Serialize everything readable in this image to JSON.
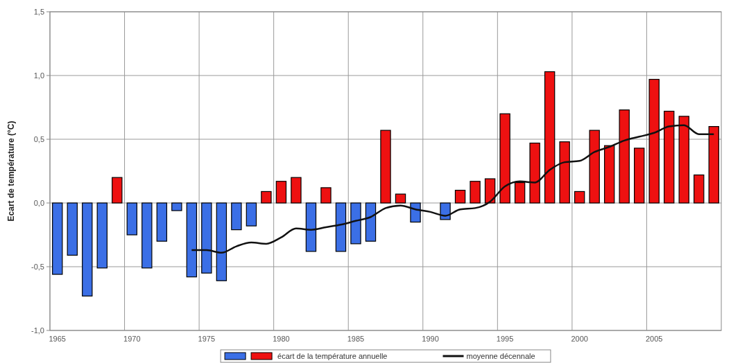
{
  "chart_data": {
    "type": "bar",
    "ylabel": "Ecart de température (°C)",
    "categories": [
      "1965",
      null,
      null,
      null,
      null,
      "1970",
      null,
      null,
      null,
      null,
      "1975",
      null,
      null,
      null,
      null,
      "1980",
      null,
      null,
      null,
      null,
      "1985",
      null,
      null,
      null,
      null,
      "1990",
      null,
      null,
      null,
      null,
      "1995",
      null,
      null,
      null,
      null,
      "2000",
      null,
      null,
      null,
      null,
      "2005",
      null,
      null,
      null,
      null
    ],
    "series": [
      {
        "name": "écart de la température annuelle",
        "values": [
          -0.56,
          -0.41,
          -0.73,
          -0.51,
          0.2,
          -0.25,
          -0.51,
          -0.3,
          -0.06,
          -0.58,
          -0.55,
          -0.61,
          -0.21,
          -0.18,
          0.09,
          0.17,
          0.2,
          -0.38,
          0.12,
          -0.38,
          -0.32,
          -0.3,
          0.57,
          0.07,
          -0.15,
          0,
          -0.13,
          0.1,
          0.17,
          0.19,
          0.7,
          0.16,
          0.47,
          1.03,
          0.48,
          0.09,
          0.57,
          0.45,
          0.73,
          0.43,
          0.97,
          0.72,
          0.68,
          0.22,
          0.6
        ],
        "colors": [
          "#3b6fe6",
          "#3b6fe6",
          "#3b6fe6",
          "#3b6fe6",
          "#ee1111",
          "#3b6fe6",
          "#3b6fe6",
          "#3b6fe6",
          "#3b6fe6",
          "#3b6fe6",
          "#3b6fe6",
          "#3b6fe6",
          "#3b6fe6",
          "#3b6fe6",
          "#ee1111",
          "#ee1111",
          "#ee1111",
          "#3b6fe6",
          "#ee1111",
          "#3b6fe6",
          "#3b6fe6",
          "#3b6fe6",
          "#ee1111",
          "#ee1111",
          "#3b6fe6",
          "#ee1111",
          "#3b6fe6",
          "#ee1111",
          "#ee1111",
          "#ee1111",
          "#ee1111",
          "#ee1111",
          "#ee1111",
          "#ee1111",
          "#ee1111",
          "#ee1111",
          "#ee1111",
          "#ee1111",
          "#ee1111",
          "#ee1111",
          "#ee1111",
          "#ee1111",
          "#ee1111",
          "#ee1111",
          "#ee1111"
        ]
      },
      {
        "name": "moyenne décennale",
        "type": "line",
        "color": "#111111",
        "values": [
          null,
          null,
          null,
          null,
          null,
          null,
          null,
          null,
          null,
          -0.37,
          -0.37,
          -0.39,
          -0.34,
          -0.31,
          -0.32,
          -0.27,
          -0.2,
          -0.21,
          -0.19,
          -0.17,
          -0.14,
          -0.11,
          -0.04,
          -0.02,
          -0.05,
          -0.07,
          -0.1,
          -0.05,
          -0.04,
          0.01,
          0.13,
          0.17,
          0.16,
          0.26,
          0.32,
          0.33,
          0.4,
          0.44,
          0.49,
          0.52,
          0.55,
          0.6,
          0.61,
          0.54,
          0.54
        ]
      }
    ],
    "ylim": [
      -1,
      1.5
    ],
    "yticks": [
      {
        "value": -1,
        "label": "-1,0"
      },
      {
        "value": -0.5,
        "label": "-0,5"
      },
      {
        "value": 0,
        "label": "0,0"
      },
      {
        "value": 0.5,
        "label": "0,5"
      },
      {
        "value": 1,
        "label": "1,0"
      },
      {
        "value": 1.5,
        "label": "1,5"
      }
    ],
    "grid": true,
    "legend": "bottom",
    "marker": "none",
    "line_style": "solid"
  }
}
